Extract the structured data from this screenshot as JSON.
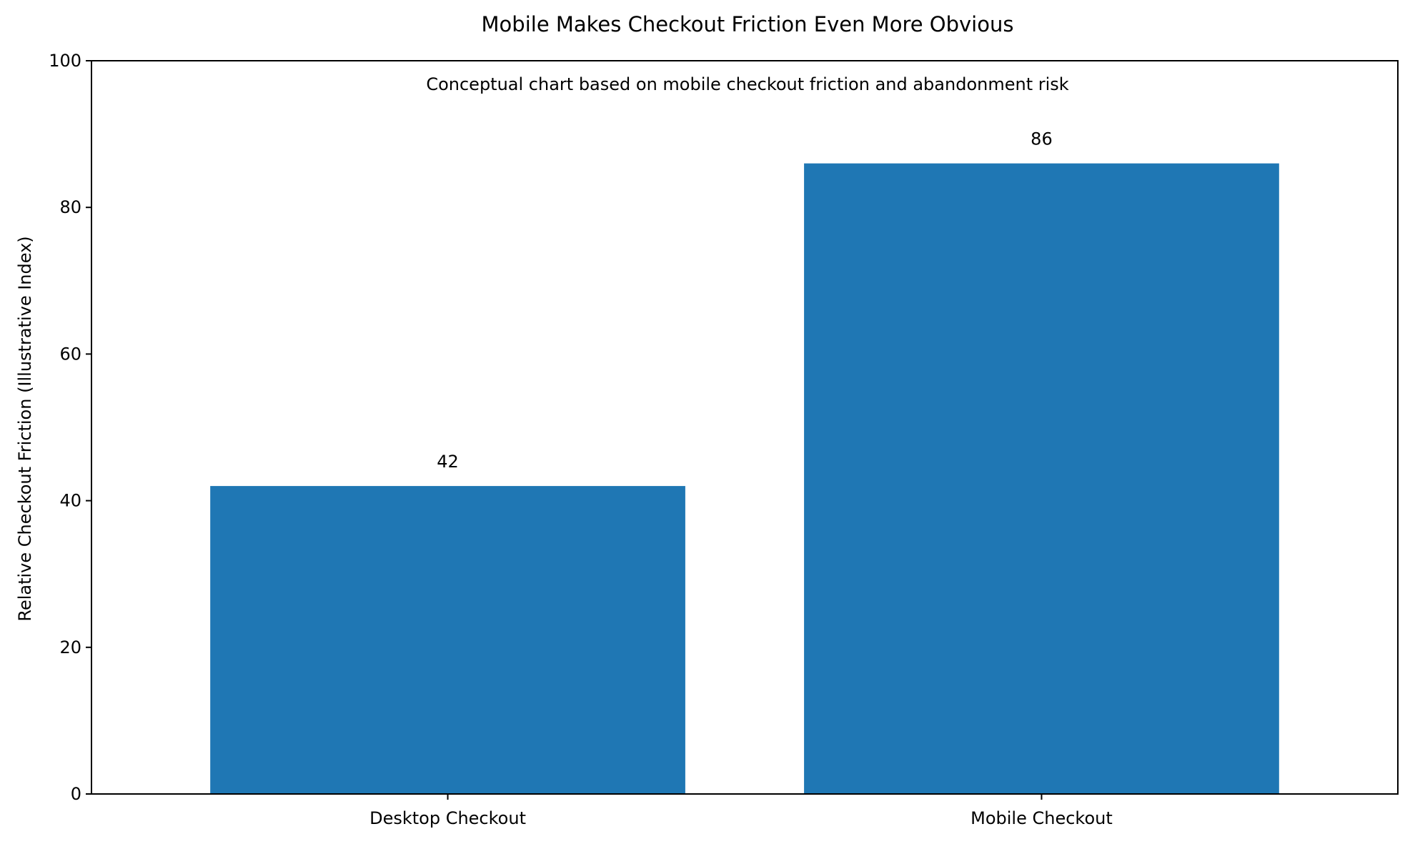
{
  "chart_data": {
    "type": "bar",
    "title": "Mobile Makes Checkout Friction Even More Obvious",
    "annotation": "Conceptual chart based on mobile checkout friction and abandonment risk",
    "xlabel": "",
    "ylabel": "Relative Checkout Friction (Illustrative Index)",
    "categories": [
      "Desktop Checkout",
      "Mobile Checkout"
    ],
    "values": [
      42,
      86
    ],
    "value_labels": [
      "42",
      "86"
    ],
    "ylim": [
      0,
      100
    ],
    "yticks": [
      0,
      20,
      40,
      60,
      80,
      100
    ],
    "ytick_labels": [
      "0",
      "20",
      "40",
      "60",
      "80",
      "100"
    ],
    "grid": false,
    "legend": "none",
    "colors": {
      "bar": "#1f77b4",
      "axis": "#000000",
      "background": "#ffffff"
    }
  }
}
